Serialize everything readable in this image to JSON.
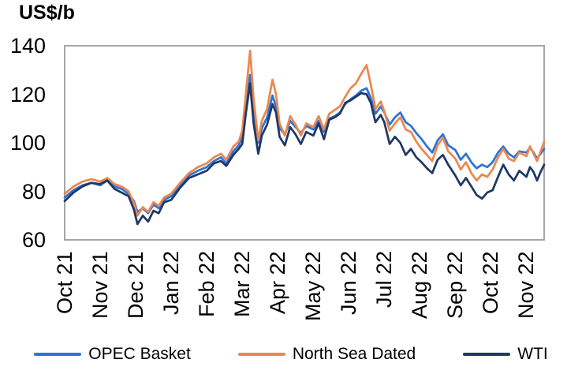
{
  "chart_data": {
    "type": "line",
    "title": "US$/b",
    "xlabel": "",
    "ylabel": "US$/b",
    "grid": false,
    "legend_position": "bottom",
    "axis_border_color": "#A6A6A6",
    "x_unit_note": "months after Oct 1, 2021 (fractional, ~weekly samples)",
    "x_range": [
      0,
      13.5
    ],
    "ylim": [
      60,
      140
    ],
    "y_ticks": [
      60,
      80,
      100,
      120,
      140
    ],
    "x_tick_labels": [
      "Oct 21",
      "Nov 21",
      "Dec 21",
      "Jan 22",
      "Feb 22",
      "Mar 22",
      "Apr 22",
      "May 22",
      "Jun 22",
      "Jul 22",
      "Aug 22",
      "Sep 22",
      "Oct 22",
      "Nov 22"
    ],
    "x": [
      0.0,
      0.25,
      0.5,
      0.75,
      1.0,
      1.2,
      1.4,
      1.6,
      1.8,
      1.95,
      2.05,
      2.2,
      2.35,
      2.5,
      2.65,
      2.8,
      3.0,
      3.25,
      3.5,
      3.75,
      4.0,
      4.2,
      4.4,
      4.55,
      4.75,
      4.9,
      5.0,
      5.1,
      5.22,
      5.32,
      5.45,
      5.55,
      5.7,
      5.85,
      5.95,
      6.05,
      6.2,
      6.35,
      6.5,
      6.65,
      6.8,
      7.0,
      7.15,
      7.3,
      7.45,
      7.6,
      7.75,
      7.9,
      8.05,
      8.2,
      8.35,
      8.5,
      8.62,
      8.75,
      8.9,
      9.0,
      9.15,
      9.3,
      9.45,
      9.6,
      9.75,
      9.9,
      10.05,
      10.2,
      10.35,
      10.5,
      10.65,
      10.8,
      11.0,
      11.15,
      11.3,
      11.45,
      11.6,
      11.75,
      11.9,
      12.05,
      12.2,
      12.35,
      12.5,
      12.65,
      12.8,
      13.0,
      13.1,
      13.2,
      13.3,
      13.4,
      13.5
    ],
    "series": [
      {
        "name": "OPEC Basket",
        "color": "#2E74D4",
        "values": [
          77.5,
          80.5,
          82.5,
          83.5,
          82.5,
          84.5,
          82,
          81,
          79,
          76,
          71.5,
          73,
          71,
          74.5,
          73,
          76.5,
          78,
          82.5,
          86.5,
          88.5,
          90,
          92.5,
          94,
          91.5,
          96.5,
          99,
          102,
          114,
          128,
          113,
          100,
          106,
          110.5,
          119.5,
          115,
          106,
          103.5,
          109,
          106.5,
          104,
          107,
          105.5,
          109,
          104.5,
          110,
          111,
          112.5,
          116,
          118,
          119.5,
          121.5,
          122.5,
          118.5,
          112,
          115,
          112.5,
          107.5,
          110.5,
          112.5,
          108.5,
          107,
          104,
          101.5,
          98.5,
          96,
          101,
          103.5,
          99,
          97,
          93,
          95.5,
          92,
          89.5,
          91,
          90,
          92,
          96,
          98.5,
          95.5,
          94,
          96.5,
          96,
          98,
          96,
          93.5,
          95.5,
          97.5
        ]
      },
      {
        "name": "North Sea Dated",
        "color": "#EB8850",
        "values": [
          79,
          82,
          84,
          85,
          84,
          85.5,
          83,
          82,
          80,
          75,
          70,
          73.5,
          71.5,
          75.5,
          74,
          77.5,
          79,
          83.5,
          87.5,
          90,
          91.5,
          94,
          95.5,
          93,
          98.5,
          100.5,
          105,
          120,
          138,
          118,
          101,
          109,
          114,
          126,
          120,
          108,
          103,
          111,
          107.5,
          103,
          108,
          106.5,
          111,
          105.5,
          112,
          113.5,
          115,
          119,
          122.5,
          124.5,
          128.5,
          132,
          124,
          114,
          117,
          113,
          105,
          108,
          110.5,
          105.5,
          104.5,
          100.5,
          97.5,
          95,
          92.5,
          99,
          102,
          96.5,
          93.5,
          89,
          92,
          87.5,
          84.5,
          87,
          86,
          89,
          94,
          97.5,
          93.5,
          92.5,
          96,
          94.5,
          98.5,
          95.5,
          92.5,
          96.5,
          100.5
        ]
      },
      {
        "name": "WTI",
        "color": "#1F3864",
        "values": [
          76,
          79.5,
          82,
          83.5,
          83,
          84.5,
          81,
          79.5,
          78,
          72.5,
          66.5,
          70,
          67.5,
          72,
          71,
          75.5,
          76.5,
          81.5,
          85.5,
          87,
          88.5,
          91.5,
          92.5,
          90.5,
          95,
          97.5,
          99.5,
          112,
          124.5,
          108,
          95.5,
          103,
          107.5,
          116,
          112.5,
          102.5,
          99,
          106.5,
          103.5,
          99.5,
          104.5,
          103,
          108,
          101.5,
          109.5,
          110.5,
          112,
          116.5,
          117.5,
          119,
          120.5,
          120,
          116.5,
          108.5,
          111.5,
          108.5,
          99.5,
          102.5,
          100,
          95,
          97.5,
          94,
          92,
          89.5,
          87.5,
          93,
          95,
          91,
          86.5,
          82.5,
          85.5,
          82,
          78.5,
          77,
          79.5,
          80.5,
          86,
          91,
          87,
          84.5,
          88.5,
          86,
          90,
          88,
          84.5,
          88,
          91
        ]
      }
    ]
  }
}
